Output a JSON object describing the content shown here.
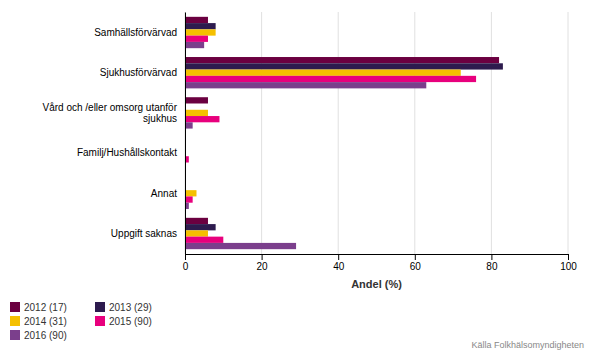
{
  "chart_data": {
    "type": "bar",
    "orientation": "horizontal",
    "categories": [
      "Uppgift saknas",
      "Annat",
      "Familj/Hushållskontakt",
      "Vård och /eller omsorg utanför\nsjukhus",
      "Sjukhusförvärvad",
      "Samhällsförvärvad"
    ],
    "series": [
      {
        "name": "2012 (17)",
        "color": "#6B0040",
        "values": [
          6,
          0,
          0,
          6,
          82,
          6
        ]
      },
      {
        "name": "2013 (29)",
        "color": "#2D1B4E",
        "values": [
          8,
          0,
          0,
          0,
          83,
          8
        ]
      },
      {
        "name": "2014 (31)",
        "color": "#F5C000",
        "values": [
          6,
          3,
          0,
          6,
          72,
          8
        ]
      },
      {
        "name": "2015 (90)",
        "color": "#E8007D",
        "values": [
          10,
          2,
          1,
          9,
          76,
          6
        ]
      },
      {
        "name": "2016 (90)",
        "color": "#7B3F8C",
        "values": [
          29,
          1,
          0,
          2,
          63,
          5
        ]
      }
    ],
    "x_label": "Andel (%)",
    "xlim": [
      0,
      100
    ],
    "xticks": [
      0,
      20,
      40,
      60,
      80,
      100
    ],
    "grid": true,
    "legend": "bottom",
    "annotations": [
      "Källa  Folkhälsomyndigheten"
    ]
  }
}
